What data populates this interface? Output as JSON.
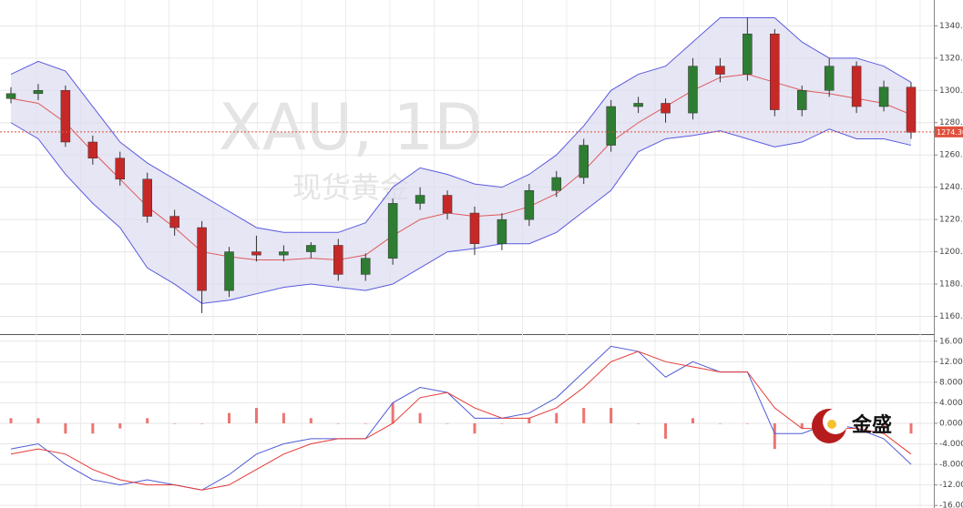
{
  "logo": "金盛",
  "chart_data": [
    {
      "type": "candlestick",
      "title": "XAU, 1D",
      "subtitle": "现货黄金",
      "open": [
        1295,
        1298,
        1300,
        1268,
        1258,
        1245,
        1222,
        1215,
        1176,
        1200,
        1198,
        1200,
        1204,
        1186,
        1196,
        1230,
        1235,
        1224,
        1205,
        1220,
        1238,
        1246,
        1266,
        1290,
        1292,
        1286,
        1315,
        1310,
        1335,
        1288,
        1300,
        1315,
        1290,
        1302
      ],
      "high": [
        1302,
        1304,
        1303,
        1272,
        1262,
        1249,
        1226,
        1219,
        1203,
        1210,
        1204,
        1206,
        1208,
        1199,
        1233,
        1240,
        1238,
        1228,
        1224,
        1242,
        1250,
        1270,
        1294,
        1296,
        1295,
        1320,
        1320,
        1345,
        1338,
        1303,
        1320,
        1318,
        1306,
        1305
      ],
      "low": [
        1292,
        1294,
        1265,
        1254,
        1241,
        1218,
        1210,
        1162,
        1172,
        1194,
        1194,
        1196,
        1182,
        1182,
        1192,
        1226,
        1220,
        1198,
        1201,
        1216,
        1234,
        1242,
        1262,
        1286,
        1280,
        1282,
        1305,
        1306,
        1284,
        1284,
        1296,
        1286,
        1287,
        1270
      ],
      "close": [
        1298,
        1300,
        1268,
        1258,
        1245,
        1222,
        1215,
        1176,
        1200,
        1198,
        1200,
        1204,
        1186,
        1196,
        1230,
        1235,
        1224,
        1205,
        1220,
        1238,
        1246,
        1266,
        1290,
        1292,
        1286,
        1315,
        1310,
        1335,
        1288,
        1300,
        1315,
        1290,
        1302,
        1274
      ],
      "up_color": "#2e7d32",
      "down_color": "#c62828",
      "bands": {
        "color": "#5a5ae0",
        "fill": "#dcdcf0",
        "mid_color": "#e05a5a",
        "upper": [
          1310,
          1318,
          1312,
          1290,
          1268,
          1255,
          1245,
          1235,
          1225,
          1215,
          1212,
          1212,
          1212,
          1218,
          1240,
          1252,
          1248,
          1242,
          1240,
          1248,
          1260,
          1278,
          1300,
          1310,
          1315,
          1330,
          1345,
          1345,
          1345,
          1330,
          1320,
          1320,
          1315,
          1305
        ],
        "middle": [
          1295,
          1292,
          1280,
          1262,
          1245,
          1228,
          1215,
          1200,
          1197,
          1195,
          1195,
          1196,
          1195,
          1198,
          1210,
          1220,
          1224,
          1222,
          1223,
          1228,
          1236,
          1250,
          1268,
          1280,
          1290,
          1300,
          1308,
          1310,
          1305,
          1300,
          1298,
          1295,
          1292,
          1285
        ],
        "lower": [
          1280,
          1270,
          1248,
          1230,
          1215,
          1190,
          1180,
          1168,
          1170,
          1174,
          1178,
          1180,
          1178,
          1176,
          1180,
          1190,
          1200,
          1202,
          1205,
          1205,
          1212,
          1225,
          1238,
          1262,
          1270,
          1272,
          1275,
          1270,
          1265,
          1268,
          1276,
          1270,
          1270,
          1266
        ]
      },
      "last_price": {
        "value": 1274.3,
        "label": "1274.30"
      },
      "last_color": "#e0503c",
      "ylim": [
        1149,
        1356
      ],
      "yticks": [
        {
          "value": 1160,
          "label": "1160.0"
        },
        {
          "value": 1180,
          "label": "1180.0"
        },
        {
          "value": 1200,
          "label": "1200.0"
        },
        {
          "value": 1220,
          "label": "1220.0"
        },
        {
          "value": 1240,
          "label": "1240.0"
        },
        {
          "value": 1260,
          "label": "1260.0"
        },
        {
          "value": 1280,
          "label": "1280.0"
        },
        {
          "value": 1300,
          "label": "1300.0"
        },
        {
          "value": 1320,
          "label": "1320.0"
        },
        {
          "value": 1340,
          "label": "1340.0"
        }
      ],
      "grid": true
    },
    {
      "type": "combo",
      "series": [
        {
          "kind": "bar",
          "color": "#e53935",
          "values": [
            1,
            1,
            -2,
            -2,
            -1,
            1,
            0,
            0,
            2,
            3,
            2,
            1,
            0,
            0,
            4,
            2,
            0,
            -2,
            0,
            1,
            2,
            3,
            3,
            0,
            -3,
            1,
            0,
            0,
            -5,
            -1,
            1,
            0,
            -1,
            -2
          ]
        },
        {
          "kind": "line",
          "color": "#4f5bd5",
          "values": [
            -5,
            -4,
            -8,
            -11,
            -12,
            -11,
            -12,
            -13,
            -10,
            -6,
            -4,
            -3,
            -3,
            -3,
            4,
            7,
            6,
            1,
            1,
            2,
            5,
            10,
            15,
            14,
            9,
            12,
            10,
            10,
            -2,
            -2,
            0,
            -1,
            -3,
            -8
          ]
        },
        {
          "kind": "line",
          "color": "#e53935",
          "values": [
            -6,
            -5,
            -6,
            -9,
            -11,
            -12,
            -12,
            -13,
            -12,
            -9,
            -6,
            -4,
            -3,
            -3,
            0,
            5,
            6,
            3,
            1,
            1,
            3,
            7,
            12,
            14,
            12,
            11,
            10,
            10,
            3,
            -1,
            -1,
            -1,
            -2,
            -6
          ]
        }
      ],
      "ylim": [
        -16.5,
        17.2
      ],
      "yticks": [
        {
          "value": 16,
          "label": "16.0000"
        },
        {
          "value": 12,
          "label": "12.0000"
        },
        {
          "value": 8,
          "label": "8.0000"
        },
        {
          "value": 4,
          "label": "4.0000"
        },
        {
          "value": 0,
          "label": "0.0000"
        },
        {
          "value": -4,
          "label": "-4.0000"
        },
        {
          "value": -8,
          "label": "-8.0000"
        },
        {
          "value": -12,
          "label": "-12.0000"
        },
        {
          "value": -16,
          "label": "-16.0000"
        }
      ],
      "grid": true
    }
  ]
}
